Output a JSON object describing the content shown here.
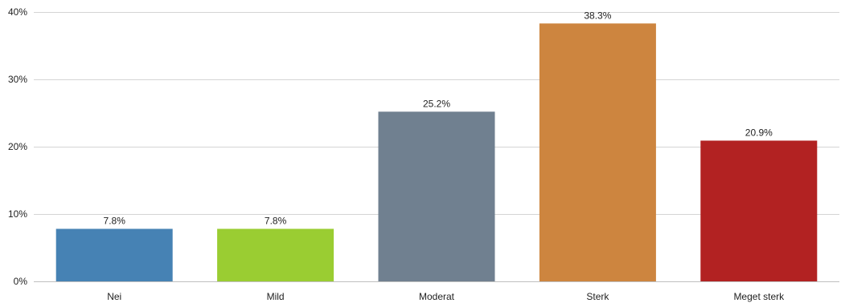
{
  "chart_data": {
    "type": "bar",
    "categories": [
      "Nei",
      "Mild",
      "Moderat",
      "Sterk",
      "Meget sterk"
    ],
    "values": [
      7.8,
      7.8,
      25.2,
      38.3,
      20.9
    ],
    "data_labels": [
      "7.8%",
      "7.8%",
      "25.2%",
      "38.3%",
      "20.9%"
    ],
    "colors": [
      "#4682b4",
      "#9acd32",
      "#708090",
      "#cd853f",
      "#b22222"
    ],
    "ylim": [
      0,
      40
    ],
    "y_ticks": [
      0,
      10,
      20,
      30,
      40
    ],
    "y_tick_labels": [
      "0%",
      "10%",
      "20%",
      "30%",
      "40%"
    ],
    "grid": true,
    "legend": "none",
    "title": "",
    "xlabel": "",
    "ylabel": ""
  }
}
